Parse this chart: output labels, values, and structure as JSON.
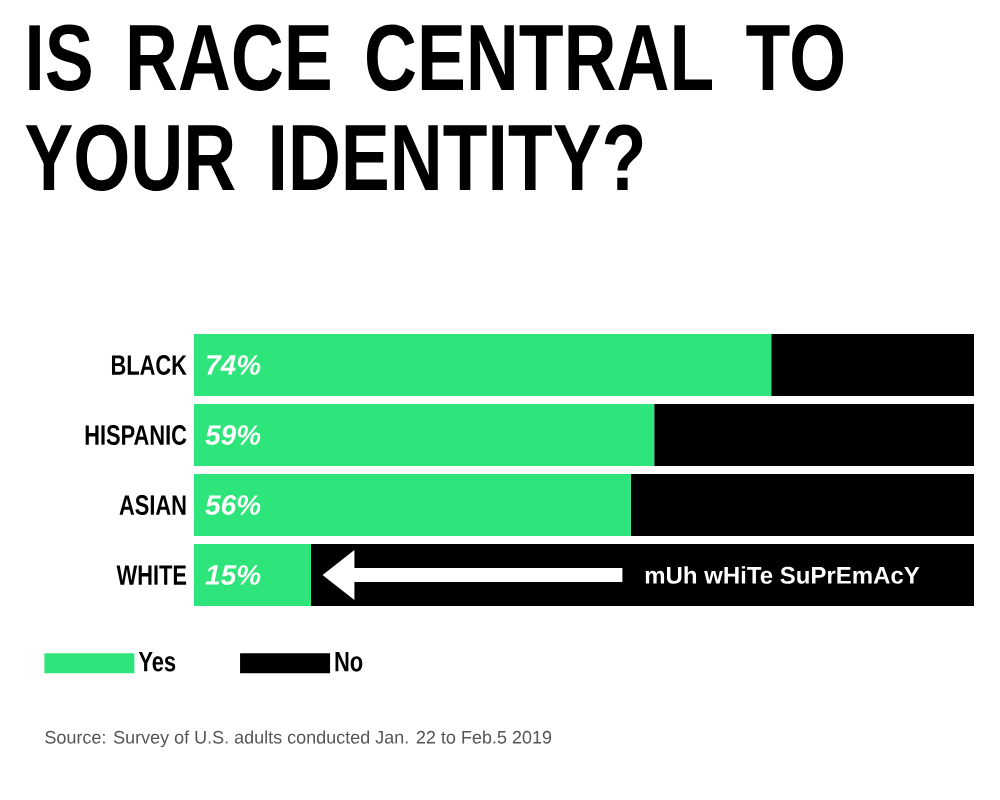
{
  "chart_data": {
    "type": "bar",
    "orientation": "horizontal",
    "stacked": true,
    "title": "IS RACE CENTRAL TO YOUR IDENTITY?",
    "categories": [
      "BLACK",
      "HISPANIC",
      "ASIAN",
      "WHITE"
    ],
    "series": [
      {
        "name": "Yes",
        "color": "#2de57a",
        "values": [
          74,
          59,
          56,
          15
        ],
        "value_labels": [
          "74%",
          "59%",
          "56%",
          "15%"
        ]
      },
      {
        "name": "No",
        "color": "#000000",
        "values": [
          26,
          41,
          44,
          85
        ]
      }
    ],
    "xlim": [
      0,
      100
    ],
    "tick_labels": "y",
    "legend": "bottom left",
    "annotations": [
      "mUh wHiTe SuPrEmAcY",
      "Source: Survey of U.S. adults conducted Jan. 22 to Feb.5 2019"
    ]
  }
}
